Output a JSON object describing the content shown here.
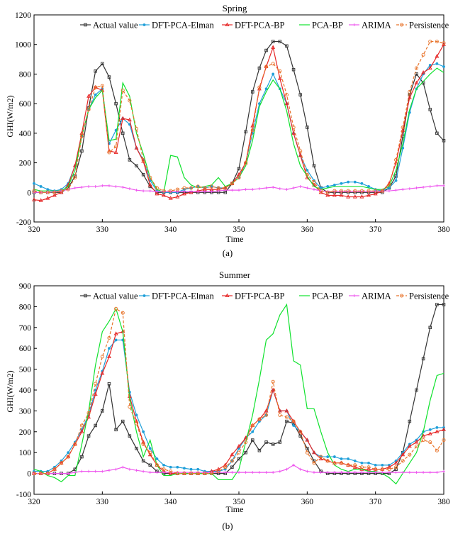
{
  "colors": {
    "actual": "#333333",
    "elman": "#1f9fd9",
    "dftbp": "#e62727",
    "pcabp": "#10e22e",
    "arima": "#ee55ee",
    "persistence": "#e8732a"
  },
  "chart_data": [
    {
      "type": "line",
      "title": "Spring",
      "caption": "(a)",
      "xlabel": "Time",
      "ylabel": "GHI(W/m2)",
      "xlim": [
        320,
        380
      ],
      "ylim": [
        -200,
        1200
      ],
      "xticks": [
        "320",
        "330",
        "340",
        "350",
        "360",
        "370",
        "380"
      ],
      "yticks": [
        "-200",
        "0",
        "200",
        "400",
        "600",
        "800",
        "1000",
        "1200"
      ],
      "legend": "top-right",
      "x": [
        320,
        321,
        322,
        323,
        324,
        325,
        326,
        327,
        328,
        329,
        330,
        331,
        332,
        333,
        334,
        335,
        336,
        337,
        338,
        339,
        340,
        341,
        342,
        343,
        344,
        345,
        346,
        347,
        348,
        349,
        350,
        351,
        352,
        353,
        354,
        355,
        356,
        357,
        358,
        359,
        360,
        361,
        362,
        363,
        364,
        365,
        366,
        367,
        368,
        369,
        370,
        371,
        372,
        373,
        374,
        375,
        376,
        377,
        378,
        379,
        380
      ],
      "series": [
        {
          "name": "Actual value",
          "key": "actual",
          "dash": false,
          "marker": "square",
          "values": [
            0,
            0,
            0,
            0,
            0,
            30,
            110,
            280,
            570,
            820,
            870,
            780,
            600,
            400,
            220,
            180,
            120,
            40,
            0,
            0,
            0,
            0,
            0,
            0,
            0,
            0,
            0,
            0,
            0,
            60,
            160,
            410,
            680,
            840,
            960,
            1020,
            1020,
            990,
            830,
            660,
            440,
            180,
            30,
            0,
            0,
            0,
            0,
            0,
            0,
            0,
            0,
            0,
            30,
            110,
            380,
            660,
            800,
            740,
            560,
            400,
            350
          ]
        },
        {
          "name": "DFT-PCA-Elman",
          "key": "elman",
          "dash": false,
          "marker": "dot",
          "values": [
            60,
            40,
            20,
            10,
            20,
            60,
            180,
            380,
            560,
            660,
            700,
            330,
            420,
            500,
            460,
            300,
            220,
            80,
            10,
            0,
            0,
            0,
            20,
            30,
            40,
            30,
            40,
            30,
            30,
            60,
            100,
            200,
            400,
            600,
            700,
            800,
            700,
            600,
            400,
            250,
            150,
            80,
            30,
            40,
            50,
            60,
            70,
            70,
            60,
            40,
            20,
            10,
            30,
            80,
            300,
            540,
            700,
            800,
            860,
            870,
            850
          ]
        },
        {
          "name": "DFT-PCA-BP",
          "key": "dftbp",
          "dash": false,
          "marker": "triangle",
          "values": [
            -50,
            -55,
            -40,
            -20,
            0,
            50,
            180,
            400,
            650,
            710,
            690,
            280,
            270,
            500,
            490,
            300,
            210,
            50,
            -10,
            -20,
            -40,
            -30,
            -10,
            0,
            10,
            20,
            20,
            20,
            30,
            60,
            120,
            200,
            450,
            700,
            850,
            980,
            770,
            600,
            400,
            250,
            100,
            50,
            0,
            -20,
            -20,
            -20,
            -30,
            -30,
            -30,
            -20,
            -10,
            10,
            60,
            200,
            420,
            640,
            740,
            810,
            840,
            920,
            1000
          ]
        },
        {
          "name": "PCA-BP",
          "key": "pcabp",
          "dash": false,
          "marker": "none",
          "values": [
            20,
            10,
            10,
            10,
            10,
            40,
            150,
            380,
            560,
            640,
            690,
            350,
            360,
            740,
            650,
            400,
            260,
            100,
            20,
            0,
            250,
            240,
            100,
            50,
            30,
            40,
            50,
            100,
            40,
            60,
            100,
            180,
            350,
            580,
            680,
            760,
            700,
            550,
            330,
            180,
            110,
            40,
            20,
            30,
            40,
            40,
            40,
            40,
            40,
            30,
            20,
            20,
            40,
            150,
            330,
            560,
            700,
            750,
            800,
            840,
            810
          ]
        },
        {
          "name": "ARIMA",
          "key": "arima",
          "dash": false,
          "marker": "plus",
          "values": [
            0,
            0,
            0,
            5,
            10,
            20,
            30,
            35,
            40,
            40,
            45,
            45,
            40,
            35,
            25,
            15,
            10,
            10,
            5,
            5,
            5,
            5,
            5,
            5,
            5,
            5,
            5,
            10,
            15,
            15,
            15,
            20,
            20,
            25,
            30,
            35,
            25,
            20,
            30,
            40,
            30,
            20,
            10,
            5,
            5,
            5,
            5,
            5,
            5,
            5,
            5,
            10,
            10,
            15,
            20,
            25,
            30,
            35,
            40,
            45,
            45
          ]
        },
        {
          "name": "Persistence",
          "key": "persistence",
          "dash": true,
          "marker": "circle",
          "values": [
            10,
            0,
            0,
            0,
            10,
            20,
            100,
            380,
            560,
            710,
            720,
            270,
            310,
            690,
            620,
            430,
            220,
            100,
            30,
            10,
            10,
            20,
            30,
            30,
            40,
            30,
            40,
            30,
            30,
            60,
            100,
            200,
            420,
            710,
            850,
            870,
            820,
            660,
            440,
            280,
            120,
            70,
            10,
            0,
            10,
            10,
            10,
            10,
            10,
            10,
            10,
            10,
            50,
            220,
            440,
            680,
            840,
            930,
            1020,
            1020,
            1010
          ]
        }
      ]
    },
    {
      "type": "line",
      "title": "Summer",
      "caption": "(b)",
      "xlabel": "Time",
      "ylabel": "GHI(W/m2)",
      "xlim": [
        320,
        380
      ],
      "ylim": [
        -100,
        900
      ],
      "xticks": [
        "320",
        "330",
        "340",
        "350",
        "360",
        "370",
        "380"
      ],
      "yticks": [
        "-100",
        "0",
        "100",
        "200",
        "300",
        "400",
        "500",
        "600",
        "700",
        "800",
        "900"
      ],
      "legend": "top-right",
      "x": [
        320,
        321,
        322,
        323,
        324,
        325,
        326,
        327,
        328,
        329,
        330,
        331,
        332,
        333,
        334,
        335,
        336,
        337,
        338,
        339,
        340,
        341,
        342,
        343,
        344,
        345,
        346,
        347,
        348,
        349,
        350,
        351,
        352,
        353,
        354,
        355,
        356,
        357,
        358,
        359,
        360,
        361,
        362,
        363,
        364,
        365,
        366,
        367,
        368,
        369,
        370,
        371,
        372,
        373,
        374,
        375,
        376,
        377,
        378,
        379,
        380
      ],
      "series": [
        {
          "name": "Actual value",
          "key": "actual",
          "dash": false,
          "marker": "square",
          "values": [
            0,
            0,
            0,
            0,
            0,
            0,
            20,
            80,
            180,
            230,
            300,
            430,
            210,
            250,
            180,
            120,
            60,
            40,
            10,
            0,
            0,
            0,
            0,
            0,
            0,
            0,
            0,
            0,
            0,
            30,
            70,
            100,
            160,
            110,
            150,
            140,
            150,
            250,
            240,
            180,
            120,
            60,
            10,
            0,
            0,
            0,
            0,
            0,
            0,
            0,
            0,
            0,
            0,
            20,
            100,
            250,
            400,
            550,
            700,
            810,
            810
          ]
        },
        {
          "name": "DFT-PCA-Elman",
          "key": "elman",
          "dash": false,
          "marker": "dot",
          "values": [
            10,
            10,
            10,
            30,
            60,
            100,
            150,
            210,
            280,
            400,
            490,
            600,
            640,
            640,
            390,
            280,
            200,
            120,
            70,
            40,
            30,
            30,
            25,
            20,
            20,
            10,
            10,
            10,
            20,
            60,
            120,
            170,
            200,
            250,
            280,
            400,
            300,
            300,
            230,
            200,
            160,
            100,
            80,
            80,
            80,
            70,
            70,
            60,
            50,
            50,
            40,
            40,
            40,
            60,
            100,
            140,
            160,
            200,
            210,
            220,
            220
          ]
        },
        {
          "name": "DFT-PCA-BP",
          "key": "dftbp",
          "dash": false,
          "marker": "triangle",
          "values": [
            0,
            0,
            0,
            20,
            50,
            80,
            140,
            200,
            270,
            380,
            480,
            560,
            670,
            680,
            370,
            250,
            150,
            90,
            40,
            10,
            0,
            0,
            0,
            0,
            0,
            0,
            10,
            20,
            40,
            90,
            130,
            170,
            230,
            260,
            300,
            400,
            300,
            300,
            250,
            200,
            160,
            100,
            70,
            60,
            50,
            50,
            40,
            30,
            20,
            20,
            20,
            20,
            30,
            50,
            90,
            130,
            150,
            180,
            190,
            200,
            210
          ]
        },
        {
          "name": "PCA-BP",
          "key": "pcabp",
          "dash": false,
          "marker": "none",
          "values": [
            20,
            10,
            -10,
            -20,
            -40,
            -10,
            -10,
            140,
            300,
            520,
            680,
            730,
            790,
            680,
            360,
            200,
            80,
            160,
            40,
            -10,
            -10,
            0,
            0,
            0,
            0,
            0,
            0,
            -30,
            -30,
            -30,
            20,
            150,
            280,
            450,
            640,
            670,
            760,
            810,
            540,
            520,
            310,
            310,
            200,
            100,
            40,
            20,
            10,
            20,
            20,
            10,
            10,
            0,
            -20,
            -50,
            0,
            50,
            100,
            200,
            350,
            470,
            480
          ]
        },
        {
          "name": "ARIMA",
          "key": "arima",
          "dash": false,
          "marker": "plus",
          "values": [
            0,
            0,
            0,
            0,
            0,
            0,
            5,
            10,
            10,
            10,
            10,
            15,
            20,
            30,
            20,
            15,
            10,
            5,
            5,
            5,
            5,
            5,
            5,
            5,
            5,
            5,
            5,
            5,
            5,
            5,
            5,
            5,
            5,
            5,
            5,
            5,
            10,
            20,
            40,
            20,
            10,
            5,
            5,
            5,
            5,
            5,
            5,
            5,
            5,
            5,
            5,
            5,
            5,
            5,
            5,
            5,
            5,
            5,
            5,
            5,
            10
          ]
        },
        {
          "name": "Persistence",
          "key": "persistence",
          "dash": true,
          "marker": "circle",
          "values": [
            0,
            0,
            0,
            20,
            50,
            80,
            140,
            230,
            290,
            430,
            560,
            650,
            790,
            770,
            320,
            240,
            140,
            100,
            40,
            20,
            10,
            0,
            0,
            0,
            0,
            0,
            0,
            10,
            30,
            60,
            100,
            150,
            230,
            260,
            280,
            440,
            280,
            270,
            250,
            200,
            100,
            50,
            80,
            60,
            50,
            50,
            40,
            40,
            30,
            30,
            20,
            20,
            20,
            30,
            60,
            90,
            130,
            160,
            150,
            110,
            160
          ]
        }
      ]
    }
  ]
}
